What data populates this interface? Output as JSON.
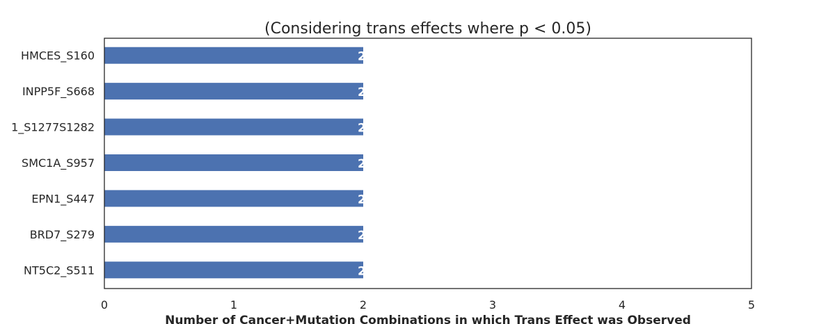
{
  "chart_data": {
    "type": "bar",
    "orientation": "horizontal",
    "title": "(Considering trans effects where p < 0.05)",
    "xlabel": "Number of Cancer+Mutation Combinations in which Trans Effect was Observed",
    "ylabel": "",
    "xlim": [
      0,
      5
    ],
    "xticks": [
      "0",
      "1",
      "2",
      "3",
      "4",
      "5"
    ],
    "categories": [
      "HMCES_S160",
      "INPP5F_S668",
      "1_S1277S1282",
      "SMC1A_S957",
      "EPN1_S447",
      "BRD7_S279",
      "NT5C2_S511"
    ],
    "values": [
      2,
      2,
      2,
      2,
      2,
      2,
      2
    ],
    "bar_labels": [
      "2",
      "2",
      "2",
      "2",
      "2",
      "2",
      "2"
    ],
    "grid": false,
    "legend": "none",
    "colors": {
      "bar": "#4c72b0",
      "bar_label": "#ffffff",
      "axes": "#262626"
    }
  }
}
